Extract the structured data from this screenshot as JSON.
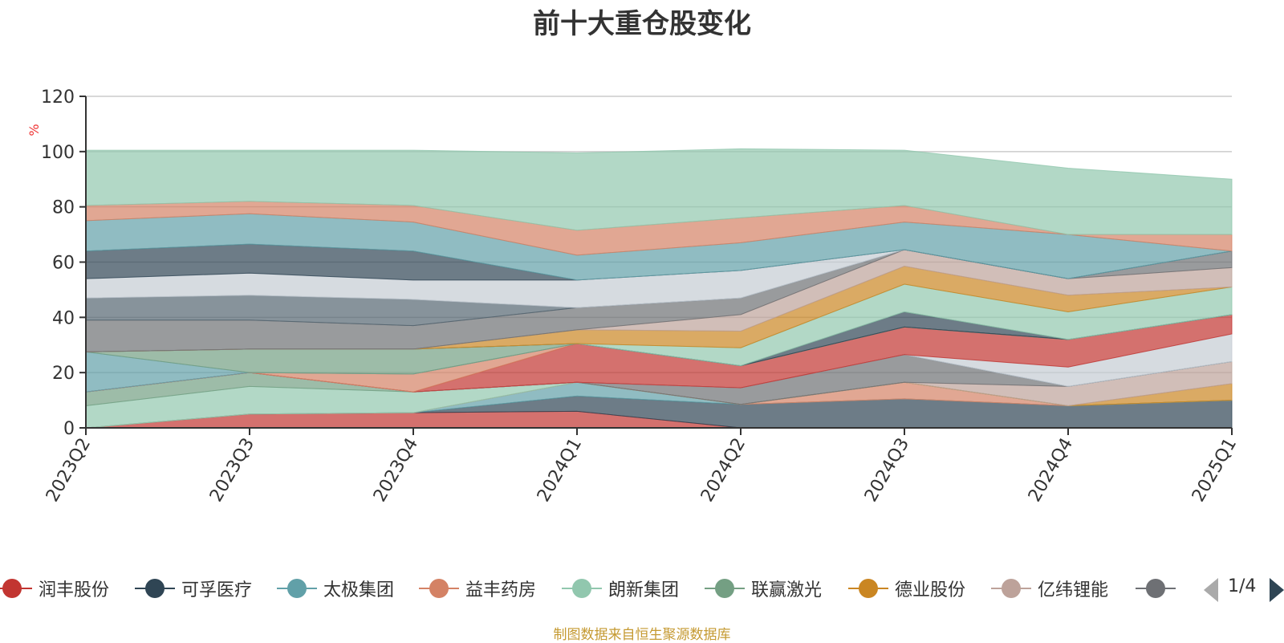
{
  "title": "前十大重仓股变化",
  "source_note": "制图数据来自恒生聚源数据库",
  "legend_page": "1/4",
  "chart_data": {
    "type": "area",
    "stacked": true,
    "title": "前十大重仓股变化",
    "ylabel": "%",
    "ylim": [
      0,
      120
    ],
    "yticks": [
      0,
      20,
      40,
      60,
      80,
      100,
      120
    ],
    "grid": true,
    "legend_placement": "bottom",
    "x": [
      "2023Q2",
      "2023Q3",
      "2023Q4",
      "2024Q1",
      "2024Q2",
      "2024Q3",
      "2024Q4",
      "2025Q1"
    ],
    "series": [
      {
        "name": "润丰股份",
        "color": "#c23531",
        "values": [
          0,
          5,
          5.5,
          6,
          0,
          0,
          0,
          0
        ]
      },
      {
        "name": "可孚医疗",
        "color": "#2f4554",
        "values": [
          0,
          0,
          0,
          5.5,
          8.5,
          10.5,
          8,
          10
        ]
      },
      {
        "name": "太极集团",
        "color": "#61a0a8",
        "values": [
          0,
          0,
          0,
          5,
          0,
          0,
          0,
          0
        ]
      },
      {
        "name": "益丰药房",
        "color": "#d48265",
        "values": [
          0,
          0,
          0,
          0,
          0,
          6,
          0,
          0
        ]
      },
      {
        "name": "朗新集团",
        "color": "#91c7ae",
        "values": [
          8,
          10,
          7.5,
          0,
          0,
          0,
          0,
          0
        ]
      },
      {
        "name": "联赢激光",
        "color": "#749f83",
        "values": [
          5,
          5,
          0,
          0,
          0,
          0,
          0,
          0
        ]
      },
      {
        "name": "德业股份",
        "color": "#ca8622",
        "values": [
          0,
          0,
          0,
          0,
          0,
          0,
          0,
          6
        ]
      },
      {
        "name": "亿纬锂能",
        "color": "#bda29a",
        "values": [
          0,
          0,
          0,
          0,
          0,
          0,
          7,
          8
        ]
      },
      {
        "name": "",
        "color": "#6e7074",
        "values": [
          0,
          0,
          0,
          0,
          6,
          10,
          0,
          0
        ]
      },
      {
        "name": "",
        "color": "#546570",
        "values": [
          0,
          0,
          0,
          0,
          0,
          0,
          0,
          0
        ]
      },
      {
        "name": "",
        "color": "#c4ccd3",
        "values": [
          0,
          0,
          0,
          0,
          0,
          0,
          7,
          10
        ]
      },
      {
        "name": "",
        "color": "#c23531",
        "values": [
          0,
          0,
          0,
          14,
          8,
          10,
          10,
          7
        ]
      },
      {
        "name": "",
        "color": "#d48265",
        "values": [
          0,
          0,
          6.5,
          0,
          0,
          0,
          0,
          0
        ]
      },
      {
        "name": "",
        "color": "#61a0a8",
        "values": [
          14.5,
          0,
          0,
          0,
          0,
          0,
          0,
          0
        ]
      },
      {
        "name": "",
        "color": "#749f83",
        "values": [
          0,
          8.5,
          9,
          0,
          0,
          0,
          0,
          0
        ]
      },
      {
        "name": "",
        "color": "#2f4554",
        "values": [
          0,
          0,
          0,
          0,
          0,
          5.5,
          0,
          0
        ]
      },
      {
        "name": "",
        "color": "#91c7ae",
        "values": [
          0,
          0,
          0,
          0,
          6.5,
          10,
          10,
          10
        ]
      },
      {
        "name": "",
        "color": "#ca8622",
        "values": [
          0,
          0,
          0,
          5,
          6,
          6.5,
          6,
          0
        ]
      },
      {
        "name": "",
        "color": "#bda29a",
        "values": [
          0,
          0,
          0,
          0,
          6,
          6,
          6,
          7
        ]
      },
      {
        "name": "",
        "color": "#6e7074",
        "values": [
          11.5,
          10.5,
          8.5,
          8,
          6,
          0,
          0,
          6
        ]
      },
      {
        "name": "",
        "color": "#546570",
        "values": [
          8,
          9,
          9.5,
          0,
          0,
          0,
          0,
          0
        ]
      },
      {
        "name": "",
        "color": "#c4ccd3",
        "values": [
          7,
          8,
          7,
          10,
          10,
          0,
          0,
          0
        ]
      },
      {
        "name": "",
        "color": "#2f4554",
        "values": [
          10,
          10.5,
          10.5,
          0,
          0,
          0,
          0,
          0
        ]
      },
      {
        "name": "",
        "color": "#61a0a8",
        "values": [
          11,
          11,
          10.5,
          9,
          10,
          10,
          16,
          0
        ]
      },
      {
        "name": "",
        "color": "#d48265",
        "values": [
          5.5,
          4.5,
          6,
          9,
          9,
          6,
          0,
          6
        ]
      },
      {
        "name": "",
        "color": "#91c7ae",
        "values": [
          20,
          18.5,
          20,
          28,
          25,
          20,
          24,
          20
        ]
      }
    ]
  }
}
